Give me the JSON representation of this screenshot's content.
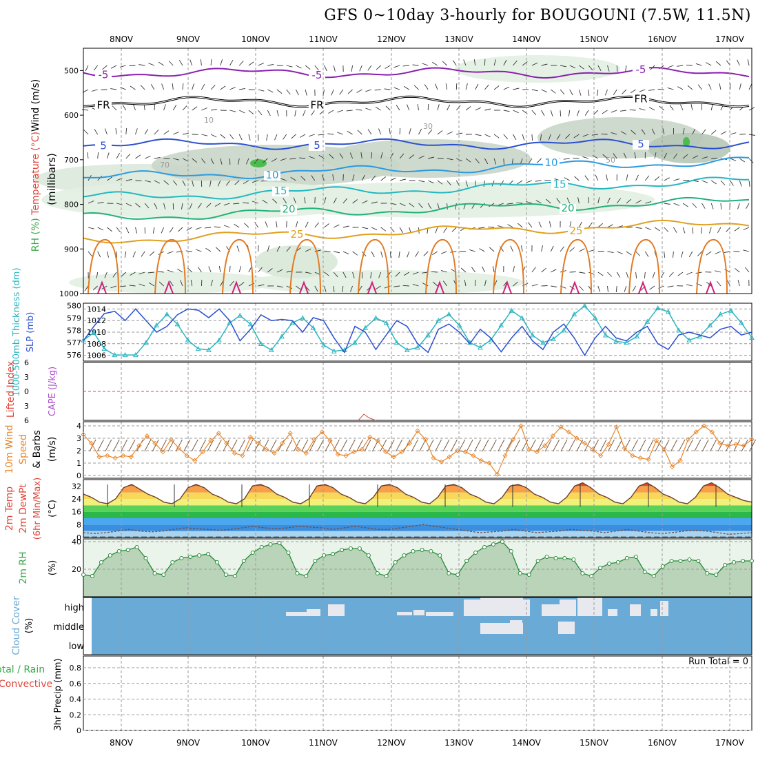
{
  "title": "GFS 0~10day 3-hourly for BOUGOUNI (7.5W, 11.5N)",
  "dates": [
    "8NOV",
    "9NOV",
    "10NOV",
    "11NOV",
    "12NOV",
    "13NOV",
    "14NOV",
    "15NOV",
    "16NOV",
    "17NOV"
  ],
  "colors": {
    "wind_red": "#e0443a",
    "temp_orange": "#e8862a",
    "rh_green": "#3aa84a",
    "thick_cyan": "#2ab5c0",
    "slp_blue": "#2a4fd0",
    "cape_violet": "#b04fd0",
    "cloud_blue": "#6aaad6",
    "purple": "#8a1fb0"
  },
  "chart_data": [
    {
      "panel": "upper-air",
      "type": "contour",
      "ylabel_parts": [
        "Wind (m/s)",
        "Temperature (°C)",
        "RH (%)",
        "(millibars)"
      ],
      "y_ticks": [
        500,
        600,
        700,
        800,
        900,
        1000
      ],
      "ylim": [
        450,
        1000
      ],
      "temperature_contours": [
        {
          "label": "-5",
          "level": -5,
          "approx_mb": 505,
          "color": "#8a1fb0"
        },
        {
          "label": "FR",
          "level": 0,
          "approx_mb": 570,
          "color": "#000000"
        },
        {
          "label": "5",
          "level": 5,
          "approx_mb": 665,
          "color": "#2a4fd0"
        },
        {
          "label": "10",
          "level": 10,
          "approx_mb": 740,
          "color": "#2a9ae0"
        },
        {
          "label": "15",
          "level": 15,
          "approx_mb": 785,
          "color": "#22b8c0"
        },
        {
          "label": "20",
          "level": 20,
          "approx_mb": 830,
          "color": "#22b07a"
        },
        {
          "label": "25",
          "level": 25,
          "approx_mb": 880,
          "color": "#e0a020"
        }
      ],
      "rh_labels": [
        "10",
        "30",
        "50",
        "70"
      ]
    },
    {
      "panel": "thickness-slp",
      "type": "line",
      "ylabel_left": "1000-500mb Thickness (dm)",
      "ylabel_right": "SLP (mb)",
      "left_ticks": [
        576,
        577,
        578,
        579,
        580
      ],
      "right_ticks": [
        1006,
        1008,
        1010,
        1012,
        1014
      ],
      "series": [
        {
          "name": "Thickness",
          "color": "#2ab5c0",
          "values": [
            577.2,
            577.8,
            576.5,
            576.0,
            576.0,
            576.0,
            577.0,
            578.4,
            579.3,
            578.5,
            577.2,
            576.5,
            576.4,
            577.2,
            578.6,
            579.2,
            578.5,
            576.9,
            576.4,
            577.5,
            578.6,
            579.0,
            578.2,
            576.8,
            576.3,
            576.4,
            577.0,
            578.2,
            579.0,
            578.6,
            577.0,
            576.4,
            576.6,
            577.6,
            578.8,
            579.3,
            578.4,
            577.0,
            576.6,
            577.2,
            578.4,
            579.6,
            579.0,
            577.6,
            577.0,
            577.3,
            578.0,
            579.3,
            580.0,
            579.0,
            577.6,
            577.1,
            577.0,
            577.5,
            578.7,
            579.8,
            579.5,
            578.0,
            577.2,
            577.5,
            578.4,
            579.3,
            579.6,
            578.6,
            577.4
          ]
        },
        {
          "name": "SLP",
          "color": "#2a4fd0",
          "values": [
            1008.5,
            1011,
            1013.2,
            1013.6,
            1012,
            1014,
            1012,
            1010,
            1011,
            1013,
            1014,
            1013.8,
            1012.5,
            1014,
            1012,
            1008.5,
            1010.5,
            1013,
            1012,
            1012.2,
            1012,
            1010,
            1012.5,
            1012,
            1009,
            1006.5,
            1011,
            1010,
            1007,
            1009.5,
            1012,
            1011,
            1008,
            1006.5,
            1010.5,
            1011.4,
            1010,
            1008,
            1010.5,
            1009,
            1006.6,
            1009,
            1011,
            1008.5,
            1007,
            1010,
            1011.4,
            1009,
            1006,
            1009,
            1011,
            1009,
            1008.5,
            1010,
            1011,
            1008,
            1007,
            1009.5,
            1010,
            1009.5,
            1009,
            1010.5,
            1011,
            1009.5,
            1010
          ]
        }
      ]
    },
    {
      "panel": "stability",
      "type": "line",
      "ylabel_left": "Lifted Index",
      "ylabel_right": "CAPE (J/kg)",
      "y_ticks": [
        -6,
        -3,
        0,
        3,
        6
      ],
      "y_tick_labels": [
        "6",
        "3",
        "0",
        "3",
        "6"
      ],
      "ylim": [
        -6,
        6
      ],
      "note": "Lifted index near bottom of scale throughout; small spike near 12NOV"
    },
    {
      "panel": "10m-wind",
      "type": "line",
      "ylabel": "10m Wind Speed & Barbs (m/s)",
      "y_ticks": [
        0,
        1,
        2,
        3,
        4
      ],
      "ylim": [
        0,
        4
      ],
      "series": [
        {
          "name": "Speed",
          "color": "#e8862a",
          "values": [
            3.3,
            2.6,
            1.5,
            1.6,
            1.4,
            1.6,
            1.5,
            2.4,
            3.2,
            2.6,
            1.9,
            2.9,
            2.2,
            1.6,
            1.2,
            1.9,
            2.8,
            3.4,
            2.6,
            1.8,
            1.6,
            3.1,
            2.6,
            2.1,
            1.8,
            2.6,
            3.4,
            2.1,
            1.8,
            2.9,
            3.5,
            2.8,
            1.7,
            1.6,
            1.9,
            2.1,
            3.1,
            2.8,
            1.9,
            1.5,
            1.9,
            2.6,
            3.6,
            2.9,
            1.4,
            1.1,
            1.5,
            2.0,
            1.9,
            1.6,
            1.2,
            1.0,
            0.1,
            1.6,
            2.9,
            4.0,
            2.1,
            1.9,
            2.4,
            3.2,
            3.9,
            3.5,
            3.0,
            2.6,
            2.1,
            1.6,
            2.5,
            3.9,
            2.2,
            1.6,
            1.4,
            1.3,
            2.8,
            2.1,
            0.7,
            1.2,
            2.9,
            3.5,
            4.0,
            3.5,
            2.6,
            2.4,
            2.5,
            2.4,
            2.9
          ]
        }
      ]
    },
    {
      "panel": "2m-temp",
      "type": "area",
      "ylabel": "2m Temp 2m DewPt (6hr Min/Max) (°C)",
      "y_ticks": [
        0,
        8,
        16,
        24,
        32
      ],
      "ylim": [
        0,
        36
      ],
      "series": [
        {
          "name": "2m Temp",
          "values": [
            27,
            25,
            22,
            21,
            24,
            31,
            33,
            30,
            27,
            25,
            22,
            21,
            24,
            31,
            33,
            31,
            27,
            25,
            22,
            21,
            24,
            32,
            33,
            31,
            27,
            25,
            22,
            21,
            24,
            32,
            33,
            31,
            27,
            25,
            22,
            21,
            25,
            32,
            33,
            31,
            27,
            25,
            22,
            21,
            25,
            32,
            33,
            31,
            27,
            25,
            22,
            21,
            25,
            32,
            33,
            31,
            27,
            25,
            22,
            21,
            25,
            32,
            34,
            31,
            27,
            25,
            22,
            21,
            25,
            32,
            34,
            31,
            27,
            25,
            22,
            21,
            25,
            32,
            34,
            31,
            27,
            25,
            23,
            22
          ]
        },
        {
          "name": "2m DewPt",
          "values": [
            3,
            2.5,
            3,
            4,
            5,
            4,
            3.5,
            4,
            5,
            6,
            5.5,
            5,
            4.5,
            5,
            6,
            7,
            6,
            5.5,
            6,
            7,
            6.5,
            6,
            5,
            6,
            7,
            6,
            5,
            5,
            6,
            7,
            8,
            7,
            6,
            5,
            4,
            3,
            3.5,
            4,
            5,
            4,
            3,
            3.5,
            4,
            5,
            4.5,
            4,
            3,
            4,
            5,
            4,
            3,
            2.5,
            3,
            4,
            4.5,
            4,
            3,
            2,
            2.5,
            3
          ]
        }
      ]
    },
    {
      "panel": "2m-rh",
      "type": "area",
      "ylabel": "2m RH (%)",
      "y_ticks": [
        20,
        40
      ],
      "ylim": [
        0,
        42
      ],
      "series": [
        {
          "name": "2m RH",
          "color": "#3aa84a",
          "values": [
            16,
            15,
            25,
            30,
            33,
            34,
            36,
            28,
            17,
            16,
            25,
            28,
            29,
            30,
            31,
            25,
            16,
            15,
            26,
            32,
            36,
            38,
            39,
            32,
            17,
            15,
            26,
            30,
            31,
            34,
            35,
            35,
            30,
            17,
            15,
            25,
            30,
            33,
            34,
            33,
            30,
            17,
            16,
            26,
            32,
            36,
            38,
            40,
            33,
            17,
            16,
            26,
            29,
            28,
            28,
            27,
            17,
            15,
            21,
            24,
            25,
            28,
            29,
            18,
            15,
            22,
            26,
            26,
            27,
            26,
            17,
            16,
            23,
            25,
            26,
            26
          ]
        }
      ]
    },
    {
      "panel": "cloud-cover",
      "type": "heatmap",
      "ylabel": "Cloud Cover (%)",
      "rows": [
        "high",
        "middle",
        "low"
      ],
      "note": "Mostly clear (blue); high cloud patches 11NOV–17NOV, middle cloud near 13NOV–14NOV and 15NOV"
    },
    {
      "panel": "precipitation",
      "type": "bar",
      "ylabel": "3hr Precip (mm)",
      "legend": [
        "Total / Rain",
        "Convective"
      ],
      "y_ticks": [
        0,
        0.2,
        0.4,
        0.6,
        0.8
      ],
      "ylim": [
        0,
        0.95
      ],
      "run_total_label": "Run Total = 0",
      "values": []
    }
  ]
}
